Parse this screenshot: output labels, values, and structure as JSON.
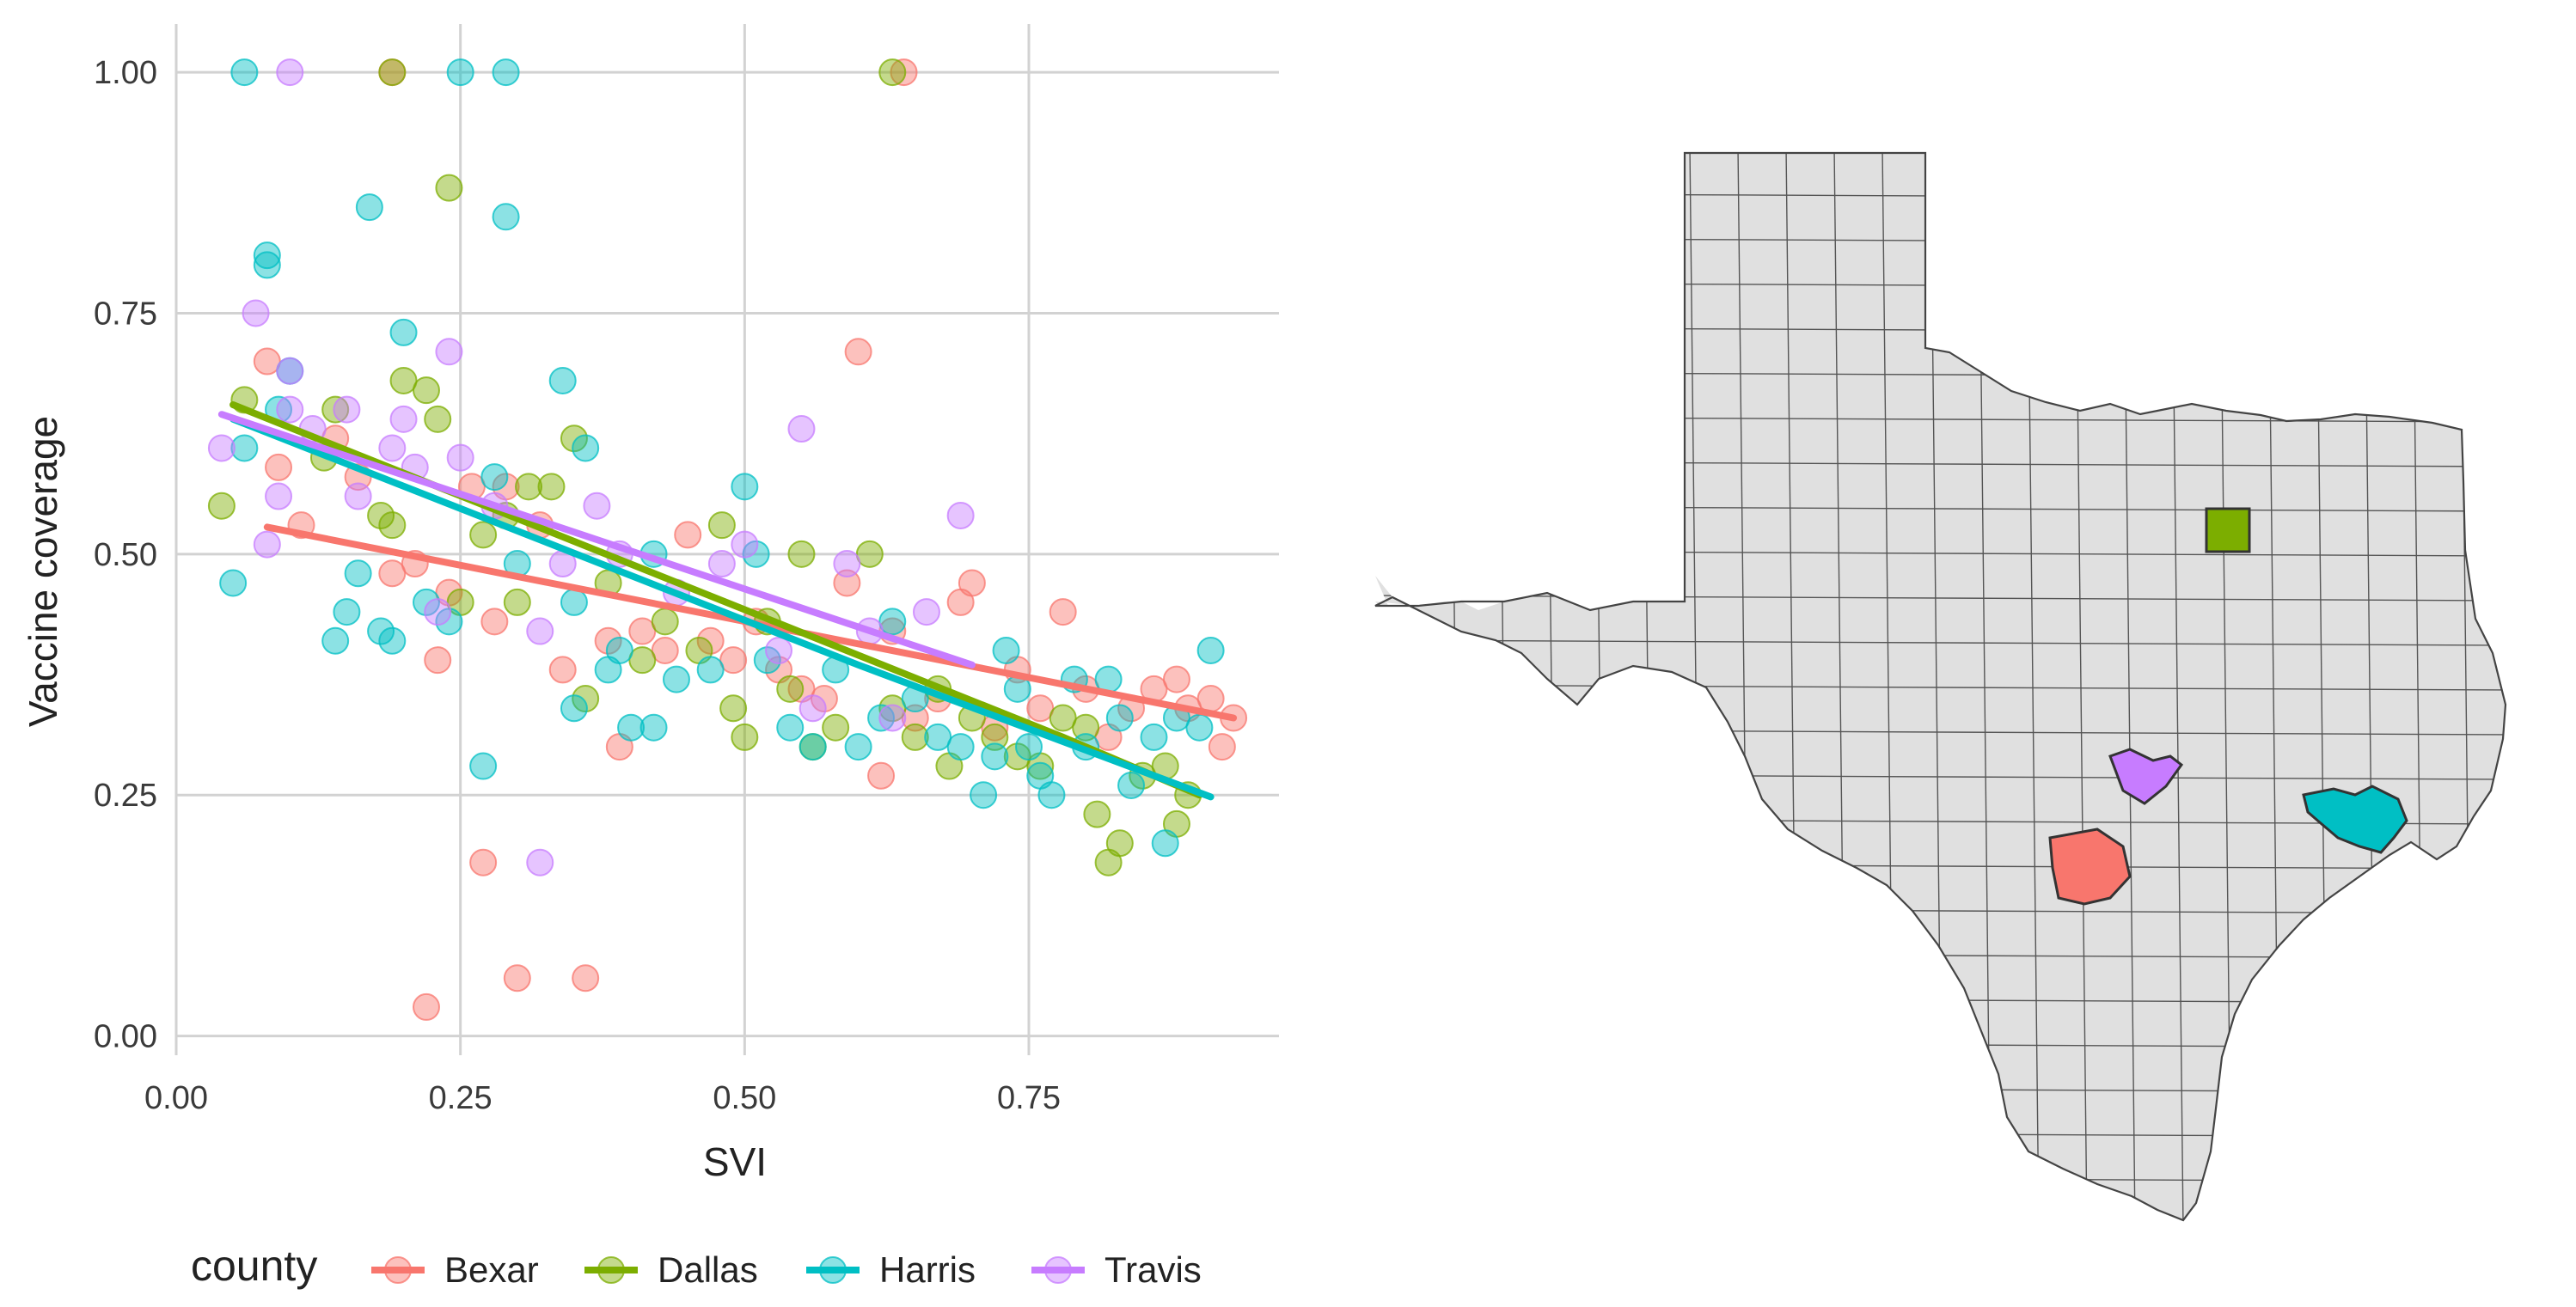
{
  "chart_data": [
    {
      "type": "scatter",
      "title": "",
      "xlabel": "SVI",
      "ylabel": "Vaccine coverage",
      "xlim": [
        0,
        0.97
      ],
      "ylim": [
        -0.02,
        1.05
      ],
      "x_ticks": [
        0,
        0.25,
        0.5,
        0.75
      ],
      "x_tick_labels": [
        "0.00",
        "0.25",
        "0.50",
        "0.75"
      ],
      "y_ticks": [
        0,
        0.25,
        0.5,
        0.75,
        1.0
      ],
      "y_tick_labels": [
        "0.00",
        "0.25",
        "0.50",
        "0.75",
        "1.00"
      ],
      "grid": true,
      "legend_title": "county",
      "legend_position": "bottom",
      "series": [
        {
          "name": "Bexar",
          "color": "#F8766D",
          "points": [
            [
              0.08,
              0.7
            ],
            [
              0.09,
              0.59
            ],
            [
              0.11,
              0.53
            ],
            [
              0.14,
              0.62
            ],
            [
              0.16,
              0.58
            ],
            [
              0.19,
              0.48
            ],
            [
              0.21,
              0.49
            ],
            [
              0.22,
              0.03
            ],
            [
              0.23,
              0.39
            ],
            [
              0.24,
              0.46
            ],
            [
              0.26,
              0.57
            ],
            [
              0.27,
              0.18
            ],
            [
              0.28,
              0.43
            ],
            [
              0.29,
              0.57
            ],
            [
              0.3,
              0.06
            ],
            [
              0.32,
              0.53
            ],
            [
              0.34,
              0.38
            ],
            [
              0.36,
              0.06
            ],
            [
              0.38,
              0.41
            ],
            [
              0.39,
              0.3
            ],
            [
              0.41,
              0.42
            ],
            [
              0.43,
              0.4
            ],
            [
              0.45,
              0.52
            ],
            [
              0.47,
              0.41
            ],
            [
              0.49,
              0.39
            ],
            [
              0.51,
              0.43
            ],
            [
              0.53,
              0.38
            ],
            [
              0.55,
              0.36
            ],
            [
              0.57,
              0.35
            ],
            [
              0.59,
              0.47
            ],
            [
              0.6,
              0.71
            ],
            [
              0.62,
              0.27
            ],
            [
              0.63,
              0.42
            ],
            [
              0.65,
              0.33
            ],
            [
              0.67,
              0.35
            ],
            [
              0.69,
              0.45
            ],
            [
              0.7,
              0.47
            ],
            [
              0.72,
              0.32
            ],
            [
              0.74,
              0.38
            ],
            [
              0.76,
              0.34
            ],
            [
              0.78,
              0.44
            ],
            [
              0.8,
              0.36
            ],
            [
              0.82,
              0.31
            ],
            [
              0.84,
              0.34
            ],
            [
              0.86,
              0.36
            ],
            [
              0.88,
              0.37
            ],
            [
              0.89,
              0.34
            ],
            [
              0.91,
              0.35
            ],
            [
              0.92,
              0.3
            ],
            [
              0.93,
              0.33
            ],
            [
              0.19,
              1.0
            ],
            [
              0.64,
              1.0
            ]
          ],
          "trend": [
            [
              0.08,
              0.528
            ],
            [
              0.93,
              0.33
            ]
          ]
        },
        {
          "name": "Dallas",
          "color": "#7CAE00",
          "points": [
            [
              0.04,
              0.55
            ],
            [
              0.06,
              0.66
            ],
            [
              0.13,
              0.6
            ],
            [
              0.14,
              0.65
            ],
            [
              0.18,
              0.54
            ],
            [
              0.19,
              0.53
            ],
            [
              0.2,
              0.68
            ],
            [
              0.22,
              0.67
            ],
            [
              0.23,
              0.64
            ],
            [
              0.24,
              0.88
            ],
            [
              0.25,
              0.45
            ],
            [
              0.27,
              0.52
            ],
            [
              0.29,
              0.54
            ],
            [
              0.3,
              0.45
            ],
            [
              0.31,
              0.57
            ],
            [
              0.33,
              0.57
            ],
            [
              0.35,
              0.62
            ],
            [
              0.36,
              0.35
            ],
            [
              0.38,
              0.47
            ],
            [
              0.41,
              0.39
            ],
            [
              0.43,
              0.43
            ],
            [
              0.46,
              0.4
            ],
            [
              0.48,
              0.53
            ],
            [
              0.49,
              0.34
            ],
            [
              0.5,
              0.31
            ],
            [
              0.52,
              0.43
            ],
            [
              0.54,
              0.36
            ],
            [
              0.55,
              0.5
            ],
            [
              0.56,
              0.3
            ],
            [
              0.58,
              0.32
            ],
            [
              0.61,
              0.5
            ],
            [
              0.63,
              0.34
            ],
            [
              0.65,
              0.31
            ],
            [
              0.67,
              0.36
            ],
            [
              0.68,
              0.28
            ],
            [
              0.7,
              0.33
            ],
            [
              0.72,
              0.31
            ],
            [
              0.74,
              0.29
            ],
            [
              0.76,
              0.28
            ],
            [
              0.78,
              0.33
            ],
            [
              0.8,
              0.32
            ],
            [
              0.81,
              0.23
            ],
            [
              0.82,
              0.18
            ],
            [
              0.83,
              0.2
            ],
            [
              0.85,
              0.27
            ],
            [
              0.87,
              0.28
            ],
            [
              0.88,
              0.22
            ],
            [
              0.89,
              0.25
            ],
            [
              0.19,
              1.0
            ],
            [
              0.63,
              1.0
            ]
          ],
          "trend": [
            [
              0.05,
              0.655
            ],
            [
              0.78,
              0.31
            ],
            [
              0.9,
              0.25
            ]
          ]
        },
        {
          "name": "Harris",
          "color": "#00BFC4",
          "points": [
            [
              0.05,
              0.47
            ],
            [
              0.06,
              0.61
            ],
            [
              0.08,
              0.8
            ],
            [
              0.08,
              0.81
            ],
            [
              0.09,
              0.65
            ],
            [
              0.1,
              0.69
            ],
            [
              0.14,
              0.41
            ],
            [
              0.15,
              0.44
            ],
            [
              0.16,
              0.48
            ],
            [
              0.17,
              0.86
            ],
            [
              0.18,
              0.42
            ],
            [
              0.19,
              0.41
            ],
            [
              0.2,
              0.73
            ],
            [
              0.22,
              0.45
            ],
            [
              0.24,
              0.43
            ],
            [
              0.27,
              0.28
            ],
            [
              0.28,
              0.58
            ],
            [
              0.29,
              0.85
            ],
            [
              0.3,
              0.49
            ],
            [
              0.34,
              0.68
            ],
            [
              0.35,
              0.45
            ],
            [
              0.35,
              0.34
            ],
            [
              0.36,
              0.61
            ],
            [
              0.38,
              0.38
            ],
            [
              0.39,
              0.4
            ],
            [
              0.4,
              0.32
            ],
            [
              0.42,
              0.5
            ],
            [
              0.42,
              0.32
            ],
            [
              0.44,
              0.37
            ],
            [
              0.47,
              0.38
            ],
            [
              0.5,
              0.57
            ],
            [
              0.51,
              0.5
            ],
            [
              0.52,
              0.39
            ],
            [
              0.54,
              0.32
            ],
            [
              0.56,
              0.3
            ],
            [
              0.58,
              0.38
            ],
            [
              0.6,
              0.3
            ],
            [
              0.62,
              0.33
            ],
            [
              0.63,
              0.43
            ],
            [
              0.65,
              0.35
            ],
            [
              0.67,
              0.31
            ],
            [
              0.69,
              0.3
            ],
            [
              0.71,
              0.25
            ],
            [
              0.72,
              0.29
            ],
            [
              0.73,
              0.4
            ],
            [
              0.74,
              0.36
            ],
            [
              0.75,
              0.3
            ],
            [
              0.76,
              0.27
            ],
            [
              0.77,
              0.25
            ],
            [
              0.79,
              0.37
            ],
            [
              0.8,
              0.3
            ],
            [
              0.82,
              0.37
            ],
            [
              0.83,
              0.33
            ],
            [
              0.84,
              0.26
            ],
            [
              0.86,
              0.31
            ],
            [
              0.87,
              0.2
            ],
            [
              0.88,
              0.33
            ],
            [
              0.9,
              0.32
            ],
            [
              0.91,
              0.4
            ],
            [
              0.06,
              1.0
            ],
            [
              0.25,
              1.0
            ],
            [
              0.29,
              1.0
            ]
          ],
          "trend": [
            [
              0.05,
              0.64
            ],
            [
              0.6,
              0.385
            ],
            [
              0.91,
              0.248
            ]
          ]
        },
        {
          "name": "Travis",
          "color": "#C77CFF",
          "points": [
            [
              0.04,
              0.61
            ],
            [
              0.07,
              0.75
            ],
            [
              0.08,
              0.51
            ],
            [
              0.09,
              0.56
            ],
            [
              0.1,
              0.65
            ],
            [
              0.1,
              0.69
            ],
            [
              0.12,
              0.63
            ],
            [
              0.15,
              0.65
            ],
            [
              0.16,
              0.56
            ],
            [
              0.19,
              0.61
            ],
            [
              0.2,
              0.64
            ],
            [
              0.21,
              0.59
            ],
            [
              0.23,
              0.44
            ],
            [
              0.24,
              0.71
            ],
            [
              0.25,
              0.6
            ],
            [
              0.28,
              0.55
            ],
            [
              0.32,
              0.18
            ],
            [
              0.32,
              0.42
            ],
            [
              0.34,
              0.49
            ],
            [
              0.37,
              0.55
            ],
            [
              0.39,
              0.5
            ],
            [
              0.44,
              0.46
            ],
            [
              0.48,
              0.49
            ],
            [
              0.5,
              0.51
            ],
            [
              0.53,
              0.4
            ],
            [
              0.55,
              0.63
            ],
            [
              0.56,
              0.34
            ],
            [
              0.59,
              0.49
            ],
            [
              0.61,
              0.42
            ],
            [
              0.63,
              0.33
            ],
            [
              0.66,
              0.44
            ],
            [
              0.69,
              0.54
            ],
            [
              0.1,
              1.0
            ]
          ],
          "trend": [
            [
              0.04,
              0.645
            ],
            [
              0.7,
              0.385
            ]
          ]
        }
      ]
    },
    {
      "type": "map",
      "title": "",
      "highlighted_counties": [
        {
          "name": "Bexar",
          "color": "#F8766D"
        },
        {
          "name": "Dallas",
          "color": "#7CAE00"
        },
        {
          "name": "Harris",
          "color": "#00BFC4"
        },
        {
          "name": "Travis",
          "color": "#C77CFF"
        }
      ],
      "base_fill": "#e0e0e0",
      "border_color": "#444444"
    }
  ]
}
